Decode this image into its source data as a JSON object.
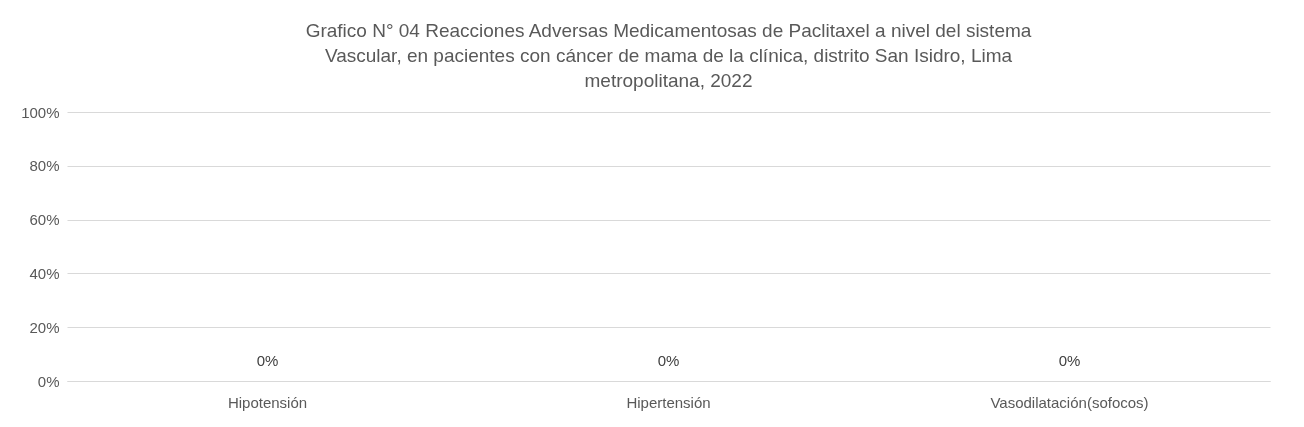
{
  "chart_data": {
    "type": "bar",
    "title": "Grafico N° 04 Reacciones Adversas Medicamentosas de Paclitaxel a nivel del sistema Vascular, en pacientes con cáncer de mama de la clínica, distrito San Isidro, Lima metropolitana, 2022",
    "categories": [
      "Hipotensión",
      "Hipertensión",
      "Vasodilatación(sofocos)"
    ],
    "values": [
      0,
      0,
      0
    ],
    "value_labels": [
      "0%",
      "0%",
      "0%"
    ],
    "ylim": [
      0,
      100
    ],
    "yticks": [
      {
        "value": 0,
        "label": "0%"
      },
      {
        "value": 20,
        "label": "20%"
      },
      {
        "value": 40,
        "label": "40%"
      },
      {
        "value": 60,
        "label": "60%"
      },
      {
        "value": 80,
        "label": "80%"
      },
      {
        "value": 100,
        "label": "100%"
      }
    ],
    "grid": "y"
  }
}
